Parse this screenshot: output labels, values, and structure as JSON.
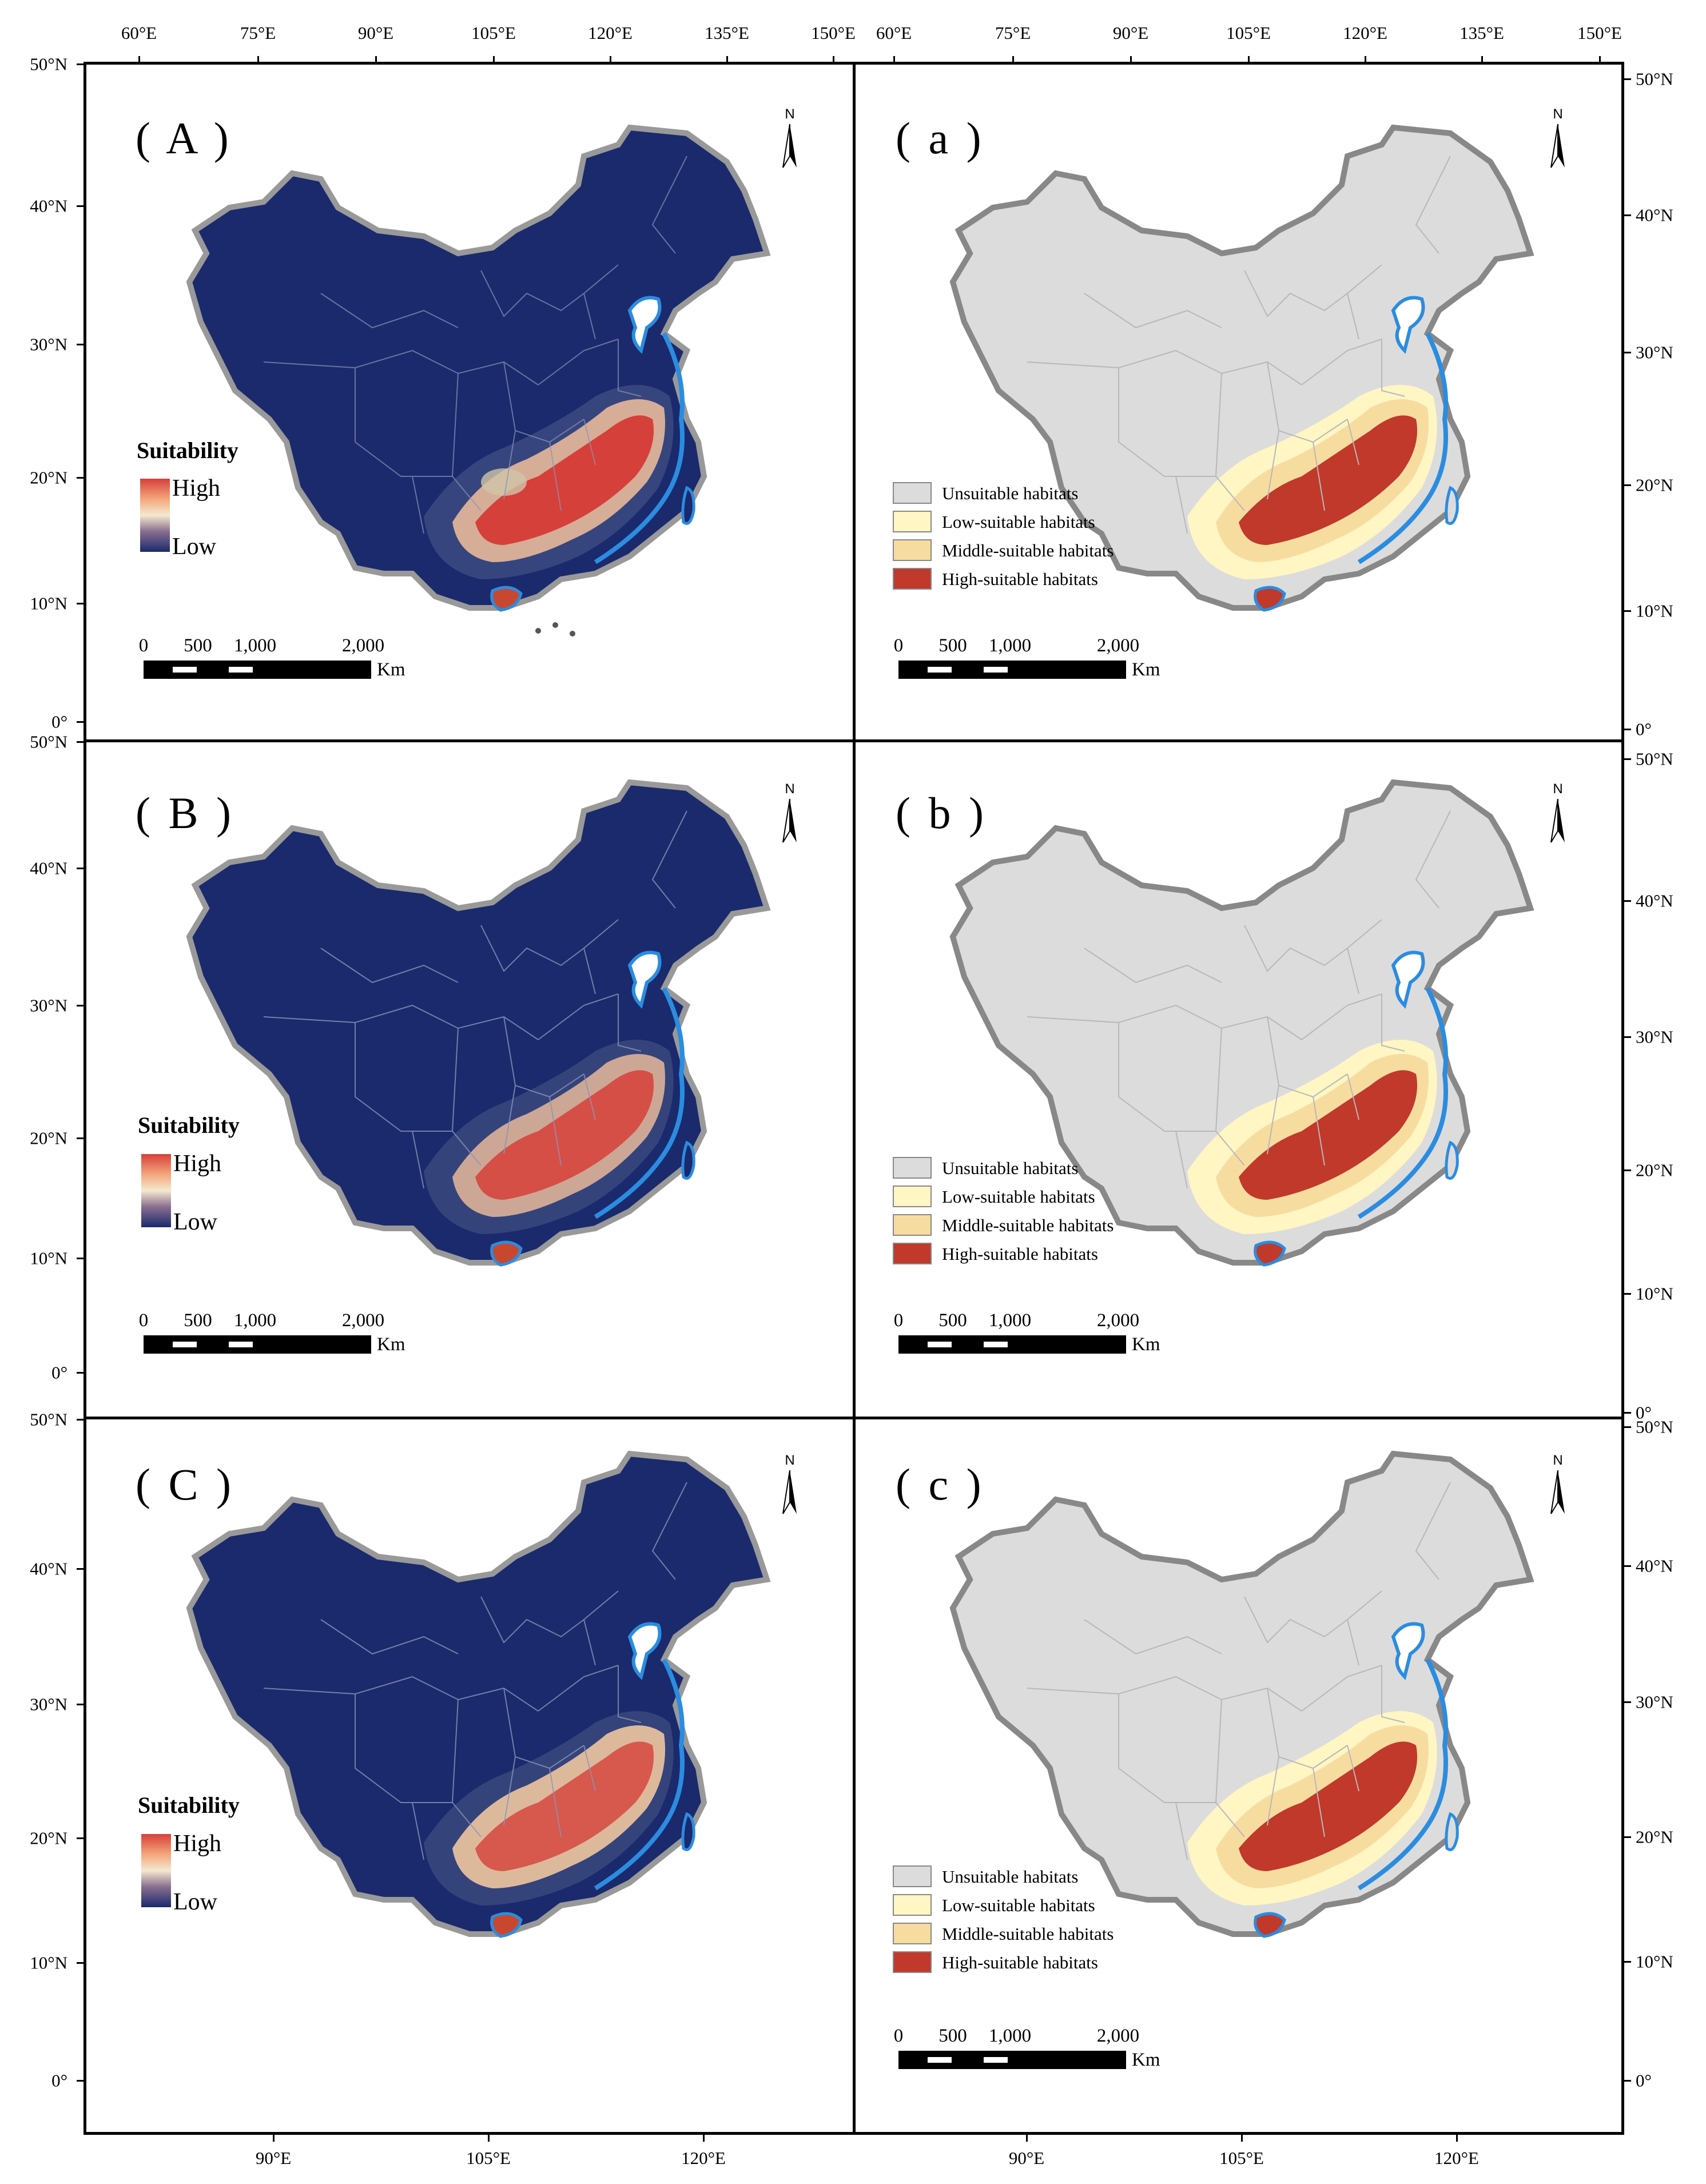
{
  "top_axis_left": [
    "60°E",
    "75°E",
    "90°E",
    "105°E",
    "120°E",
    "135°E",
    "150°E"
  ],
  "top_axis_right": [
    "60°E",
    "75°E",
    "90°E",
    "105°E",
    "120°E",
    "135°E",
    "150°E"
  ],
  "bottom_axis_left": [
    "90°E",
    "105°E",
    "120°E"
  ],
  "bottom_axis_right": [
    "90°E",
    "105°E",
    "120°E"
  ],
  "left_axis": {
    "row1": [
      "50°N",
      "40°N",
      "30°N",
      "20°N",
      "10°N",
      "0°"
    ],
    "row2": [
      "50°N",
      "40°N",
      "30°N",
      "20°N",
      "10°N",
      "0°"
    ],
    "row3": [
      "50°N",
      "40°N",
      "30°N",
      "20°N",
      "10°N",
      "0°"
    ]
  },
  "right_axis": {
    "row1": [
      "50°N",
      "40°N",
      "30°N",
      "20°N",
      "10°N",
      "0°"
    ],
    "row2": [
      "50°N",
      "40°N",
      "30°N",
      "20°N",
      "10°N",
      "0°"
    ],
    "row3": [
      "50°N",
      "40°N",
      "30°N",
      "20°N",
      "10°N",
      "0°"
    ]
  },
  "panels": {
    "A": {
      "label": "( A )"
    },
    "B": {
      "label": "( B )"
    },
    "C": {
      "label": "( C )"
    },
    "a": {
      "label": "( a )"
    },
    "b": {
      "label": "( b )"
    },
    "c": {
      "label": "( c )"
    }
  },
  "suitability_legend": {
    "title": "Suitability",
    "high": "High",
    "low": "Low"
  },
  "habitat_legend": [
    {
      "label": "Unsuitable habitats",
      "color": "#dcdcdc"
    },
    {
      "label": "Low-suitable habitats",
      "color": "#fff6c4"
    },
    {
      "label": "Middle-suitable habitats",
      "color": "#f7dca0"
    },
    {
      "label": "High-suitable habitats",
      "color": "#c0392b"
    }
  ],
  "scale_bar": {
    "ticks": [
      "0",
      "500",
      "1,000",
      "2,000"
    ],
    "unit": "Km"
  },
  "north_arrow": {
    "letter": "N"
  },
  "colors": {
    "continuous_low": "#1a2a6c",
    "continuous_mid": "#f5e9cf",
    "continuous_high": "#d6403a",
    "unsuitable": "#dcdcdc",
    "water": "#2b8ce0",
    "border": "#888888"
  }
}
